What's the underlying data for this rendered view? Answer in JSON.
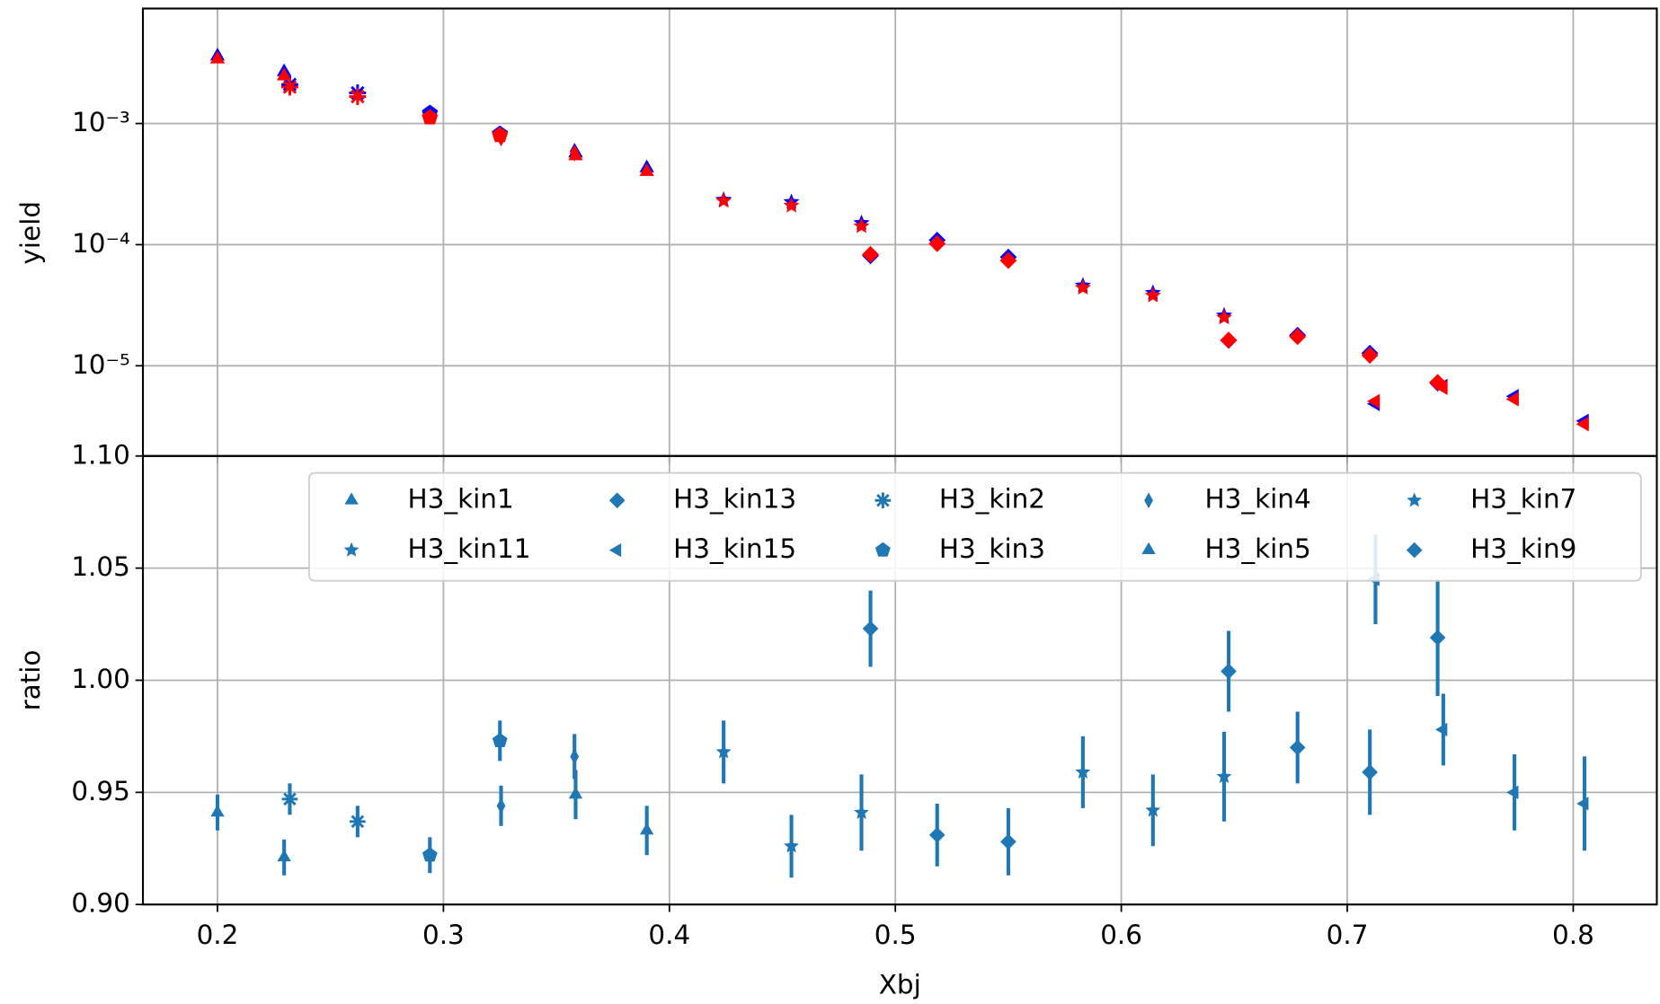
{
  "chart_data": [
    {
      "type": "scatter",
      "ylabel": "yield",
      "yscale": "log",
      "grid": true,
      "xlim": [
        0.167,
        0.837
      ],
      "xticks": [
        0.2,
        0.3,
        0.4,
        0.5,
        0.6,
        0.7,
        0.8
      ],
      "ylim": [
        1.8e-06,
        0.0089
      ],
      "yticks": [
        {
          "value": 0.001,
          "label": "10⁻³"
        },
        {
          "value": 0.0001,
          "label": "10⁻⁴"
        },
        {
          "value": 1e-05,
          "label": "10⁻⁵"
        }
      ],
      "series": [
        {
          "color": "#0000ff",
          "marker": "tri-up",
          "x": [
            0.2,
            0.2295
          ],
          "values": [
            0.0036,
            0.00267
          ]
        },
        {
          "color": "#0000ff",
          "marker": "star",
          "x": [
            0.485,
            0.583,
            0.614,
            0.6455
          ],
          "values": [
            0.000151,
            4.6e-05,
            4e-05,
            2.6e-05
          ]
        },
        {
          "color": "#0000ff",
          "marker": "diamond",
          "x": [
            0.6475,
            0.678,
            0.71,
            0.74
          ],
          "values": [
            1.62e-05,
            1.79e-05,
            1.27e-05,
            7.2e-06
          ]
        },
        {
          "color": "#0000ff",
          "marker": "tri-left",
          "x": [
            0.7125,
            0.7425,
            0.774,
            0.805
          ],
          "values": [
            4.85e-06,
            6.8e-06,
            5.6e-06,
            3.5e-06
          ]
        },
        {
          "color": "#0000ff",
          "marker": "asterisk",
          "x": [
            0.232,
            0.262
          ],
          "values": [
            0.0021,
            0.00179
          ]
        },
        {
          "color": "#0000ff",
          "marker": "pentagon",
          "x": [
            0.294,
            0.325
          ],
          "values": [
            0.00122,
            0.00082
          ]
        },
        {
          "color": "#0000ff",
          "marker": "thin-diamond",
          "x": [
            0.3255,
            0.358
          ],
          "values": [
            0.0008,
            0.00059
          ]
        },
        {
          "color": "#0000ff",
          "marker": "tri-up",
          "x": [
            0.3585,
            0.39
          ],
          "values": [
            0.00057,
            0.00043
          ]
        },
        {
          "color": "#0000ff",
          "marker": "star",
          "x": [
            0.424,
            0.454
          ],
          "values": [
            0.000235,
            0.000225
          ]
        },
        {
          "color": "#0000ff",
          "marker": "diamond",
          "x": [
            0.489,
            0.5185,
            0.55
          ],
          "values": [
            8.1e-05,
            0.000109,
            7.9e-05
          ]
        },
        {
          "color": "#ff0000",
          "marker": "tri-up",
          "x": [
            0.2,
            0.2295
          ],
          "values": [
            0.0034,
            0.00246
          ]
        },
        {
          "color": "#ff0000",
          "marker": "star",
          "x": [
            0.485,
            0.583,
            0.614,
            0.6455
          ],
          "values": [
            0.000142,
            4.4e-05,
            3.8e-05,
            2.5e-05
          ]
        },
        {
          "color": "#ff0000",
          "marker": "diamond",
          "x": [
            0.6475,
            0.678,
            0.71,
            0.74
          ],
          "values": [
            1.63e-05,
            1.74e-05,
            1.22e-05,
            7.3e-06
          ]
        },
        {
          "color": "#ff0000",
          "marker": "tri-left",
          "x": [
            0.7125,
            0.7425,
            0.774,
            0.805
          ],
          "values": [
            5.1e-06,
            6.6e-06,
            5.3e-06,
            3.3e-06
          ]
        },
        {
          "color": "#ff0000",
          "marker": "asterisk",
          "x": [
            0.232,
            0.262
          ],
          "values": [
            0.002,
            0.00167
          ]
        },
        {
          "color": "#ff0000",
          "marker": "pentagon",
          "x": [
            0.294,
            0.325
          ],
          "values": [
            0.00112,
            0.0008
          ]
        },
        {
          "color": "#ff0000",
          "marker": "thin-diamond",
          "x": [
            0.3255,
            0.358
          ],
          "values": [
            0.00076,
            0.00057
          ]
        },
        {
          "color": "#ff0000",
          "marker": "tri-up",
          "x": [
            0.3585,
            0.39
          ],
          "values": [
            0.00054,
            0.0004
          ]
        },
        {
          "color": "#ff0000",
          "marker": "star",
          "x": [
            0.424,
            0.454
          ],
          "values": [
            0.00023,
            0.00021
          ]
        },
        {
          "color": "#ff0000",
          "marker": "diamond",
          "x": [
            0.489,
            0.5185,
            0.55
          ],
          "values": [
            8.3e-05,
            0.000102,
            7.4e-05
          ]
        }
      ]
    },
    {
      "type": "errorbar",
      "xlabel": "Xbj",
      "ylabel": "ratio",
      "grid": true,
      "legend": "upper right",
      "legend_columns": 5,
      "xlim": [
        0.167,
        0.837
      ],
      "xticks": [
        0.2,
        0.3,
        0.4,
        0.5,
        0.6,
        0.7,
        0.8
      ],
      "ylim": [
        0.9,
        1.1
      ],
      "yticks": [
        {
          "value": 0.9,
          "label": "0.90"
        },
        {
          "value": 0.95,
          "label": "0.95"
        },
        {
          "value": 1.0,
          "label": "1.00"
        },
        {
          "value": 1.05,
          "label": "1.05"
        },
        {
          "value": 1.1,
          "label": "1.10"
        }
      ],
      "series": [
        {
          "name": "H3_kin1",
          "marker": "tri-up",
          "color": "#1f77b4",
          "x": [
            0.2,
            0.2295
          ],
          "values": [
            0.941,
            0.921
          ],
          "errors": [
            0.008,
            0.008
          ]
        },
        {
          "name": "H3_kin11",
          "marker": "star",
          "color": "#1f77b4",
          "x": [
            0.485,
            0.583,
            0.614,
            0.6455
          ],
          "values": [
            0.941,
            0.959,
            0.942,
            0.957
          ],
          "errors": [
            0.017,
            0.016,
            0.016,
            0.02
          ]
        },
        {
          "name": "H3_kin13",
          "marker": "diamond",
          "color": "#1f77b4",
          "x": [
            0.6475,
            0.678,
            0.71,
            0.74
          ],
          "values": [
            1.004,
            0.97,
            0.959,
            1.019
          ],
          "errors": [
            0.018,
            0.016,
            0.019,
            0.026
          ]
        },
        {
          "name": "H3_kin15",
          "marker": "tri-left",
          "color": "#1f77b4",
          "x": [
            0.7125,
            0.7425,
            0.774,
            0.805
          ],
          "values": [
            1.045,
            0.978,
            0.95,
            0.945
          ],
          "errors": [
            0.02,
            0.016,
            0.017,
            0.021
          ]
        },
        {
          "name": "H3_kin2",
          "marker": "asterisk",
          "color": "#1f77b4",
          "x": [
            0.232,
            0.262
          ],
          "values": [
            0.947,
            0.937
          ],
          "errors": [
            0.007,
            0.007
          ]
        },
        {
          "name": "H3_kin3",
          "marker": "pentagon",
          "color": "#1f77b4",
          "x": [
            0.294,
            0.325
          ],
          "values": [
            0.922,
            0.973
          ],
          "errors": [
            0.008,
            0.009
          ]
        },
        {
          "name": "H3_kin4",
          "marker": "thin-diamond",
          "color": "#1f77b4",
          "x": [
            0.3255,
            0.358
          ],
          "values": [
            0.944,
            0.966
          ],
          "errors": [
            0.009,
            0.01
          ]
        },
        {
          "name": "H3_kin5",
          "marker": "tri-up",
          "color": "#1f77b4",
          "x": [
            0.3585,
            0.39
          ],
          "values": [
            0.949,
            0.933
          ],
          "errors": [
            0.011,
            0.011
          ]
        },
        {
          "name": "H3_kin7",
          "marker": "star",
          "color": "#1f77b4",
          "x": [
            0.424,
            0.454
          ],
          "values": [
            0.968,
            0.926
          ],
          "errors": [
            0.014,
            0.014
          ]
        },
        {
          "name": "H3_kin9",
          "marker": "diamond",
          "color": "#1f77b4",
          "x": [
            0.489,
            0.5185,
            0.55
          ],
          "values": [
            1.023,
            0.931,
            0.928
          ],
          "errors": [
            0.017,
            0.014,
            0.015
          ]
        }
      ]
    }
  ]
}
